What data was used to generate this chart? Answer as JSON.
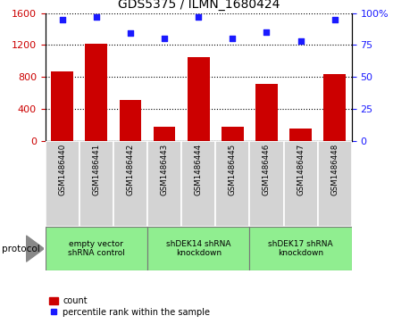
{
  "title": "GDS5375 / ILMN_1680424",
  "samples": [
    "GSM1486440",
    "GSM1486441",
    "GSM1486442",
    "GSM1486443",
    "GSM1486444",
    "GSM1486445",
    "GSM1486446",
    "GSM1486447",
    "GSM1486448"
  ],
  "counts": [
    870,
    1210,
    510,
    175,
    1050,
    175,
    710,
    155,
    840
  ],
  "percentile_ranks": [
    95,
    97,
    84,
    80,
    97,
    80,
    85,
    78,
    95
  ],
  "group_ranges": [
    [
      0,
      2,
      "empty vector\nshRNA control"
    ],
    [
      3,
      5,
      "shDEK14 shRNA\nknockdown"
    ],
    [
      6,
      8,
      "shDEK17 shRNA\nknockdown"
    ]
  ],
  "bar_color": "#cc0000",
  "dot_color": "#1a1aff",
  "ylim_left": [
    0,
    1600
  ],
  "ylim_right": [
    0,
    100
  ],
  "yticks_left": [
    0,
    400,
    800,
    1200,
    1600
  ],
  "yticks_right": [
    0,
    25,
    50,
    75,
    100
  ],
  "tick_color_left": "#cc0000",
  "tick_color_right": "#1a1aff",
  "sample_bg_color": "#d3d3d3",
  "group_bg_color": "#90ee90",
  "protocol_label": "protocol"
}
